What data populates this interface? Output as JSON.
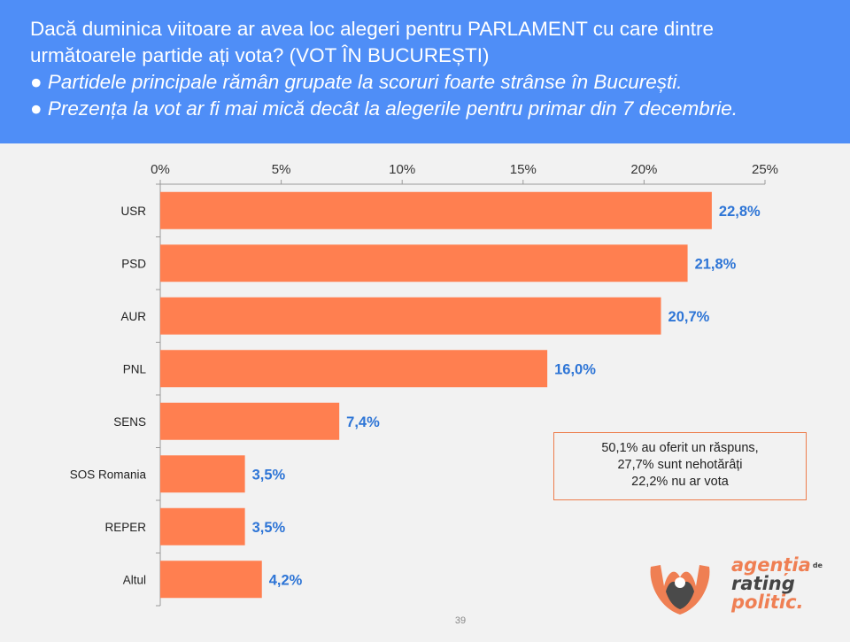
{
  "header": {
    "line1": "Dacă duminica viitoare ar avea loc alegeri pentru PARLAMENT cu care dintre",
    "line2": "următoarele partide ați vota? (VOT ÎN BUCUREȘTI)",
    "bullet1": "Partidele principale rămân grupate la scoruri foarte strânse în București.",
    "bullet2": "Prezența la vot ar fi mai mică decât la alegerile pentru primar din 7 decembrie."
  },
  "note": {
    "line1": "50,1% au oferit un răspuns,",
    "line2": "27,7% sunt nehotărâți",
    "line3": "22,2% nu ar vota"
  },
  "page_number": "39",
  "logo": {
    "word1": "agenția",
    "word1_suffix": "de",
    "word2": "rating",
    "word3": "politic."
  },
  "colors": {
    "header_bg": "#4f8ef7",
    "bar": "#ff7f50",
    "value_label": "#2e75d6",
    "axis": "#999999"
  },
  "chart_data": {
    "type": "bar",
    "orientation": "horizontal",
    "categories": [
      "USR",
      "PSD",
      "AUR",
      "PNL",
      "SENS",
      "SOS Romania",
      "REPER",
      "Altul"
    ],
    "values": [
      22.8,
      21.8,
      20.7,
      16.0,
      7.4,
      3.5,
      3.5,
      4.2
    ],
    "value_labels": [
      "22,8%",
      "21,8%",
      "20,7%",
      "16,0%",
      "7,4%",
      "3,5%",
      "3,5%",
      "4,2%"
    ],
    "xlim": [
      0,
      25
    ],
    "x_ticks": [
      0,
      5,
      10,
      15,
      20,
      25
    ],
    "x_tick_labels": [
      "0%",
      "5%",
      "10%",
      "15%",
      "20%",
      "25%"
    ],
    "axis_position": "top",
    "grid": false,
    "title": "",
    "xlabel": "",
    "ylabel": ""
  }
}
